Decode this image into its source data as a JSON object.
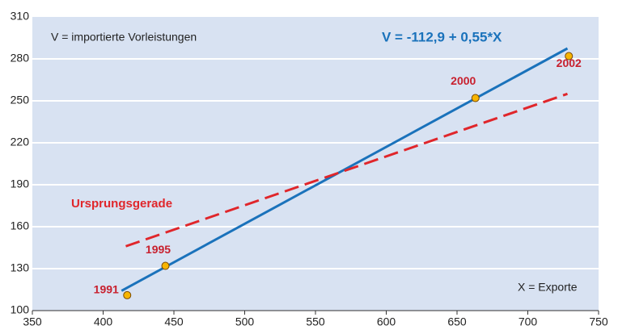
{
  "chart_data": {
    "type": "scatter",
    "xlim": [
      350,
      750
    ],
    "ylim": [
      100,
      310
    ],
    "xticks": [
      350,
      400,
      450,
      500,
      550,
      600,
      650,
      700,
      750
    ],
    "yticks": [
      100,
      130,
      160,
      190,
      220,
      250,
      280,
      310
    ],
    "grid": true,
    "x": [
      417,
      444,
      663,
      729
    ],
    "values": [
      111,
      132,
      252,
      282
    ],
    "point_labels": [
      "1991",
      "1995",
      "2000",
      "2002"
    ],
    "color": "#f7b500",
    "lines": [
      {
        "label": "V = -112,9 + 0,55*X",
        "color": "#1a72bb",
        "dashed": false,
        "x": [
          413,
          728
        ],
        "values": [
          114.2,
          287.5
        ]
      },
      {
        "label": "Ursprungsgerade",
        "color": "#e0262b",
        "dashed": true,
        "x": [
          416,
          728
        ],
        "values": [
          146,
          255
        ]
      }
    ],
    "annotations": [
      "V = importierte Vorleistungen",
      "X = Exporte"
    ]
  }
}
